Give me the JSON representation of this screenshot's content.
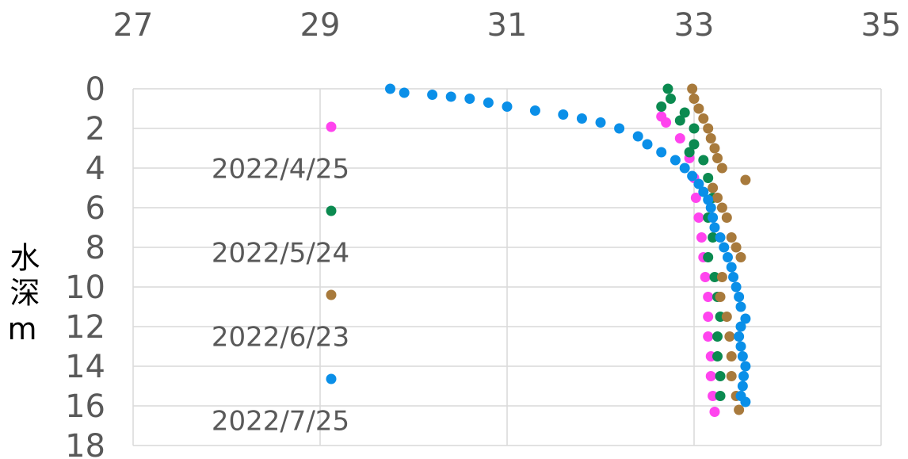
{
  "chart_data": {
    "type": "scatter",
    "y_label": "水深m",
    "xlim": [
      27,
      35
    ],
    "xticks": [
      27,
      29,
      31,
      33,
      35
    ],
    "ylim": [
      0,
      18
    ],
    "yticks": [
      0,
      2,
      4,
      6,
      8,
      10,
      12,
      14,
      16,
      18
    ],
    "y_inverted": true,
    "x_axis_position": "top",
    "grid": true,
    "legend": "left",
    "series": [
      {
        "name": "2022/4/25",
        "color": "#ff44ee",
        "x": [
          32.65,
          32.7,
          32.85,
          32.95,
          33.0,
          33.02,
          33.05,
          33.08,
          33.1,
          33.12,
          33.15,
          33.15,
          33.15,
          33.18,
          33.18,
          33.2,
          33.22
        ],
        "values": [
          1.4,
          1.7,
          2.5,
          3.5,
          4.5,
          5.5,
          6.5,
          7.5,
          8.5,
          9.5,
          10.5,
          11.5,
          12.5,
          13.5,
          14.5,
          15.5,
          16.3
        ]
      },
      {
        "name": "2022/5/24",
        "color": "#0b8a50",
        "x": [
          32.72,
          32.75,
          32.65,
          32.9,
          32.85,
          33.0,
          33.0,
          32.95,
          33.1,
          33.15,
          33.2,
          33.15,
          33.2,
          33.15,
          33.22,
          33.25,
          33.28,
          33.25,
          33.25,
          33.28,
          33.28
        ],
        "values": [
          0,
          0.5,
          0.9,
          1.2,
          1.6,
          2.0,
          2.8,
          3.2,
          3.6,
          4.5,
          5.5,
          6.5,
          7.5,
          8.5,
          9.5,
          10.5,
          11.5,
          12.5,
          13.5,
          14.5,
          15.5
        ]
      },
      {
        "name": "2022/6/23",
        "color": "#a87a3c",
        "x": [
          32.98,
          33.0,
          33.05,
          33.1,
          33.15,
          33.18,
          33.22,
          33.25,
          33.3,
          33.55,
          33.2,
          33.25,
          33.3,
          33.35,
          33.4,
          33.45,
          33.5,
          33.3,
          33.28,
          33.35,
          33.38,
          33.4,
          33.4,
          33.45,
          33.48
        ],
        "values": [
          0,
          0.5,
          1.0,
          1.5,
          2.0,
          2.5,
          3.0,
          3.5,
          4.0,
          4.6,
          5.0,
          5.5,
          6.0,
          6.5,
          7.5,
          8.0,
          8.5,
          9.5,
          10.5,
          11.5,
          12.5,
          13.5,
          14.5,
          15.5,
          16.2
        ]
      },
      {
        "name": "2022/7/25",
        "color": "#0a8fe8",
        "x": [
          29.75,
          29.9,
          30.2,
          30.4,
          30.6,
          30.8,
          31.0,
          31.3,
          31.6,
          31.8,
          32.0,
          32.2,
          32.4,
          32.5,
          32.65,
          32.8,
          32.9,
          32.98,
          33.05,
          33.1,
          33.15,
          33.18,
          33.2,
          33.22,
          33.28,
          33.32,
          33.36,
          33.4,
          33.42,
          33.45,
          33.48,
          33.5,
          33.55,
          33.5,
          33.48,
          33.5,
          33.52,
          33.55,
          33.53,
          33.52,
          33.5,
          33.55
        ],
        "values": [
          0,
          0.2,
          0.3,
          0.4,
          0.5,
          0.7,
          0.9,
          1.1,
          1.3,
          1.5,
          1.7,
          2.0,
          2.4,
          2.8,
          3.2,
          3.6,
          4.0,
          4.4,
          4.8,
          5.2,
          5.6,
          6.0,
          6.5,
          7.0,
          7.5,
          8.0,
          8.5,
          9.0,
          9.5,
          10.0,
          10.5,
          11.0,
          11.6,
          12.0,
          12.5,
          13.0,
          13.5,
          14.0,
          14.5,
          15.0,
          15.5,
          15.8
        ]
      }
    ]
  }
}
